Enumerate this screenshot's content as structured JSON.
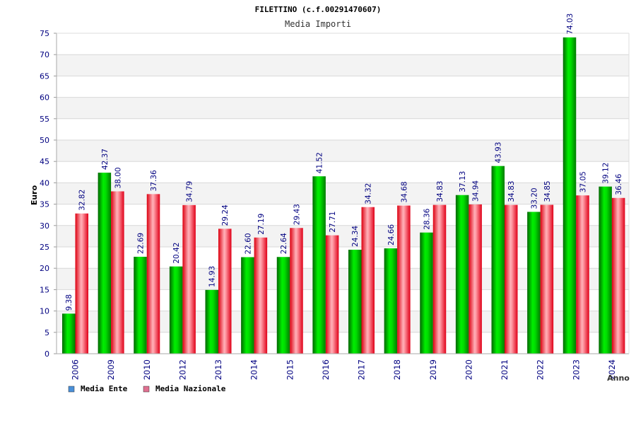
{
  "chart_data": {
    "type": "bar",
    "title": "FILETTINO (c.f.00291470607)",
    "subtitle": "Media Importi",
    "xlabel": "Anno",
    "ylabel": "Euro",
    "ylim": [
      0,
      75
    ],
    "ytick_step": 5,
    "grid": true,
    "legend_position": "bottom-left",
    "categories": [
      "2006",
      "2009",
      "2010",
      "2012",
      "2013",
      "2014",
      "2015",
      "2016",
      "2017",
      "2018",
      "2019",
      "2020",
      "2021",
      "2022",
      "2023",
      "2024"
    ],
    "series": [
      {
        "name": "Media Ente",
        "legend_color": "#4a90d9",
        "bar_color": "#00cc00",
        "values": [
          9.38,
          42.37,
          22.69,
          20.42,
          14.93,
          22.6,
          22.64,
          41.52,
          24.34,
          24.66,
          28.36,
          37.13,
          43.93,
          33.2,
          74.03,
          39.12
        ],
        "labels": [
          "9.38",
          "42.37",
          "22.69",
          "20.42",
          "14.93",
          "22.60",
          "22.64",
          "41.52",
          "24.34",
          "24.66",
          "28.36",
          "37.13",
          "43.93",
          "33.20",
          "74.03",
          "39.12"
        ]
      },
      {
        "name": "Media Nazionale",
        "legend_color": "#e07090",
        "bar_color": "#ff2a3a",
        "values": [
          32.82,
          38.0,
          37.36,
          34.79,
          29.24,
          27.19,
          29.43,
          27.71,
          34.32,
          34.68,
          34.83,
          34.94,
          34.83,
          34.85,
          37.05,
          36.46
        ],
        "labels": [
          "32.82",
          "38.00",
          "37.36",
          "34.79",
          "29.24",
          "27.19",
          "29.43",
          "27.71",
          "34.32",
          "34.68",
          "34.83",
          "34.94",
          "34.83",
          "34.85",
          "37.05",
          "36.46"
        ]
      }
    ]
  }
}
